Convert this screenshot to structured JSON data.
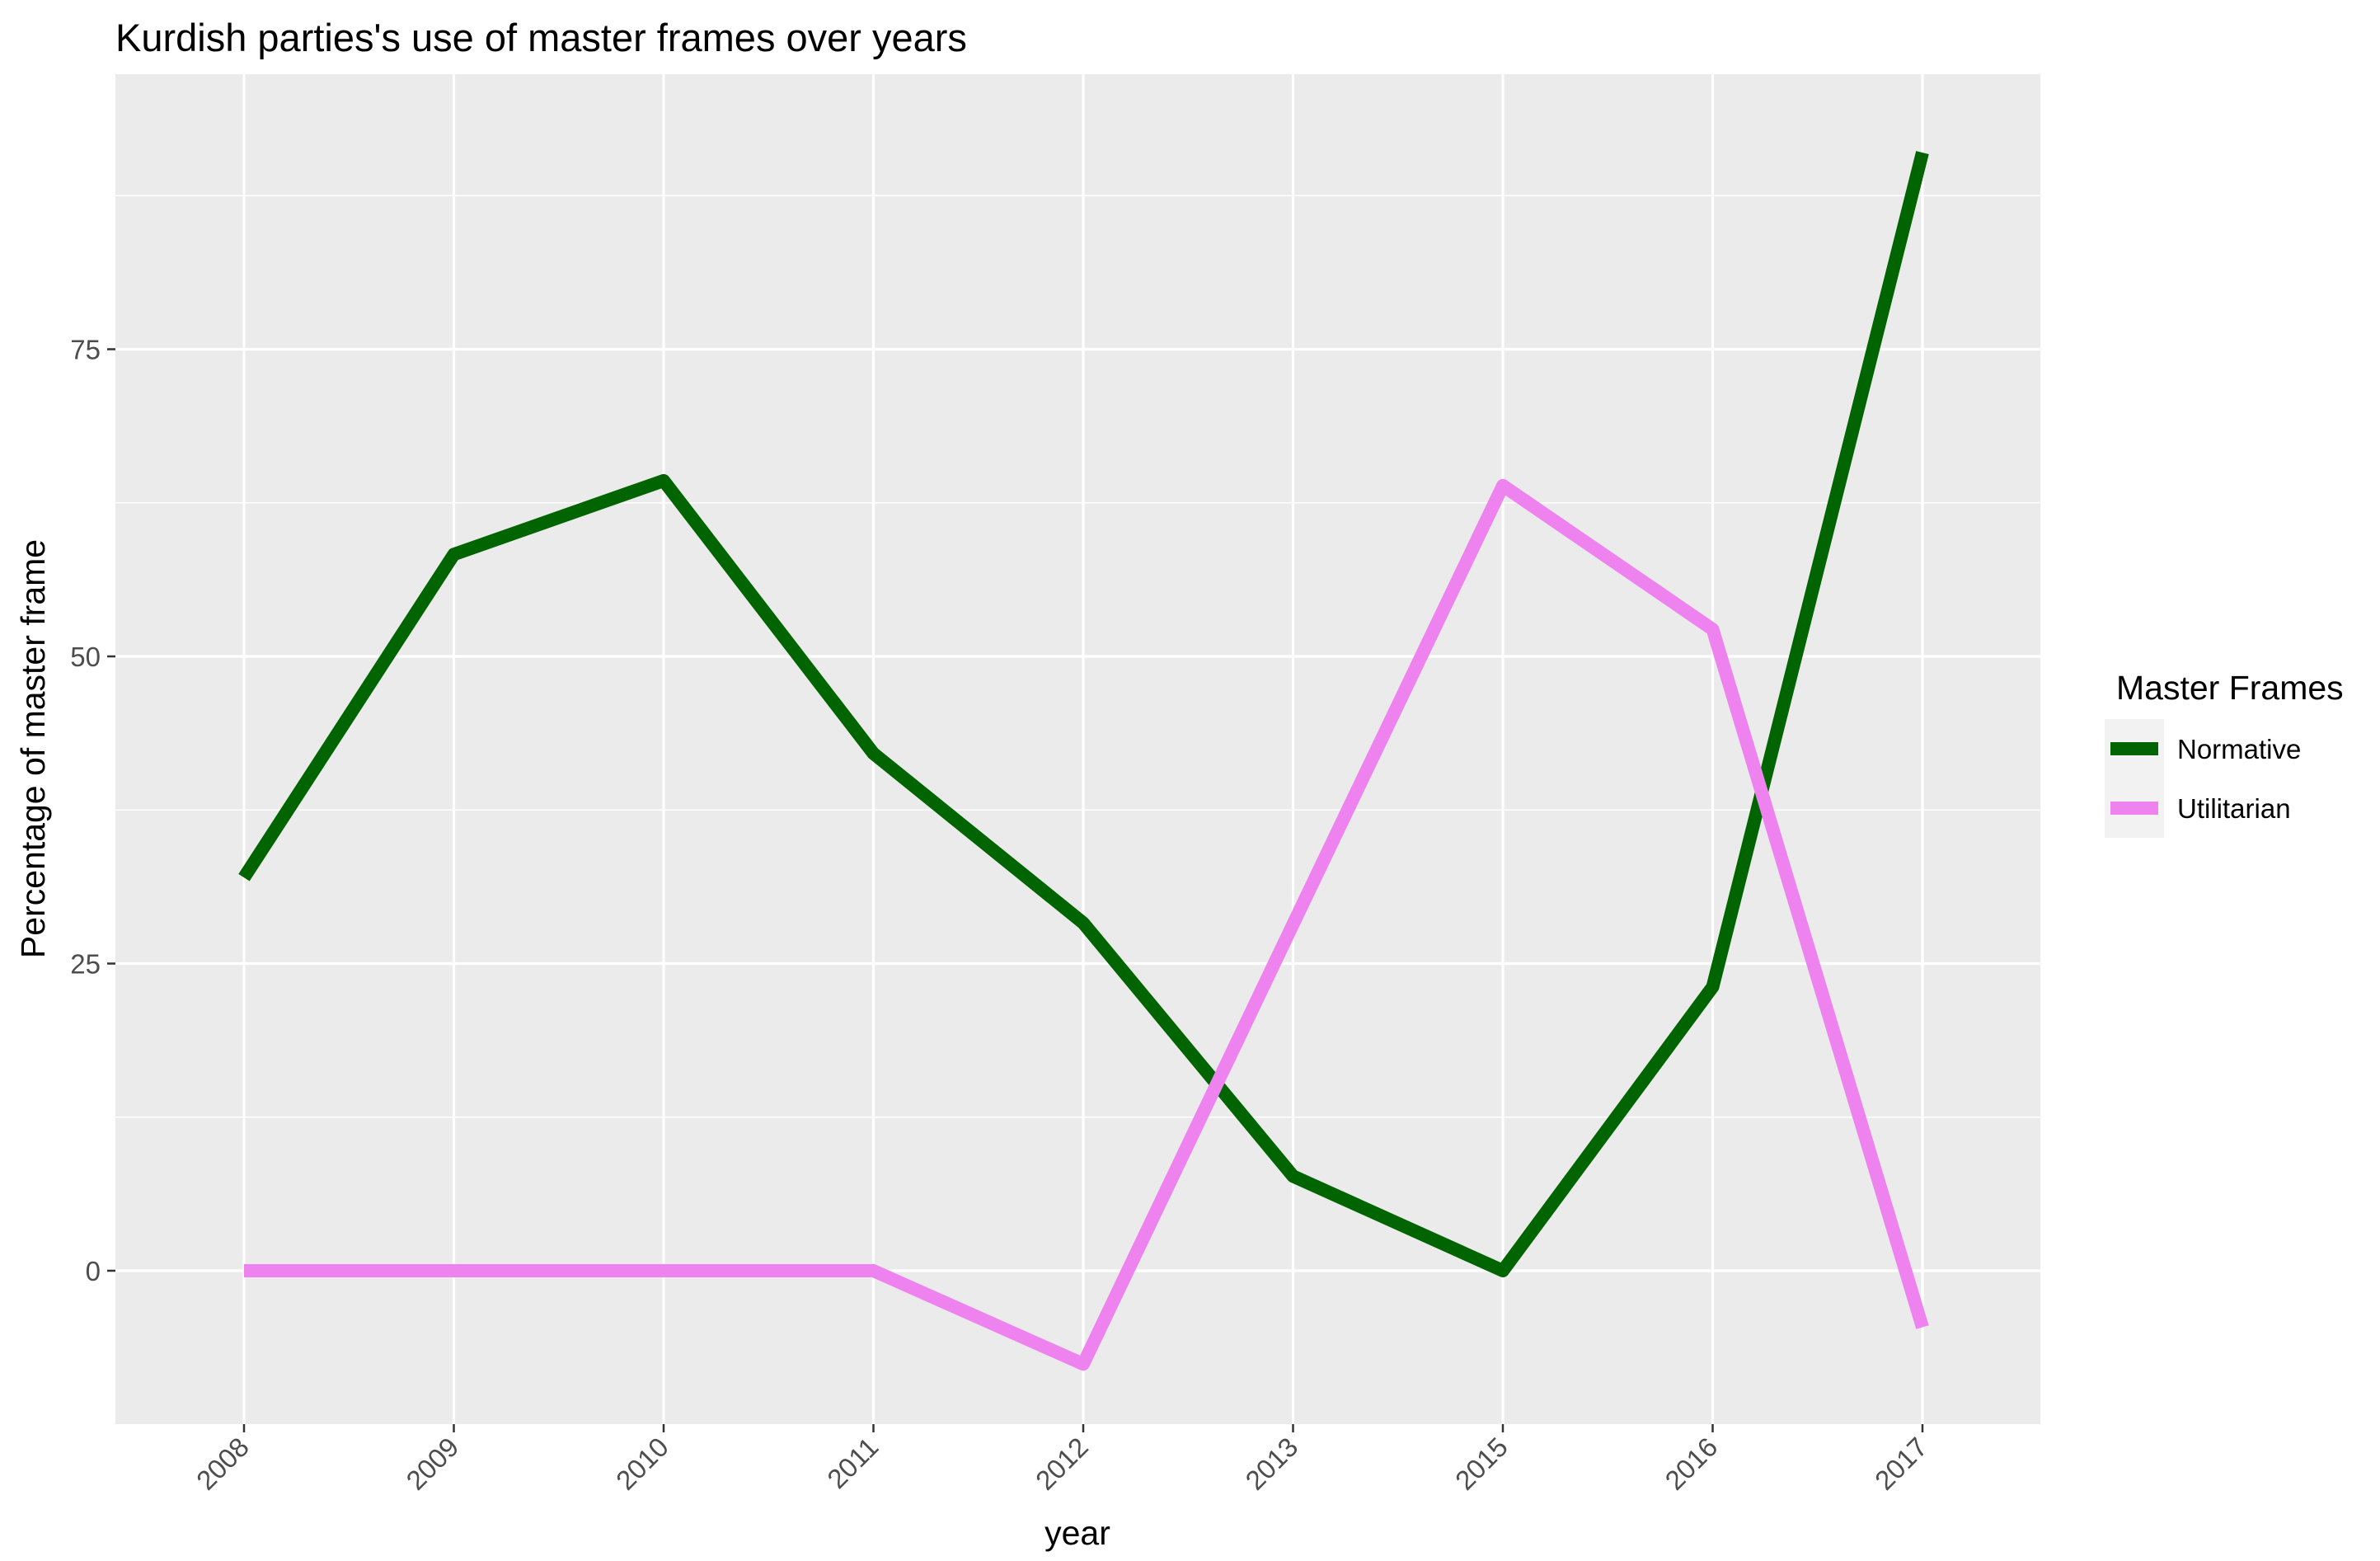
{
  "chart_data": {
    "type": "line",
    "title": "Kurdish parties's use of master frames over years",
    "xlabel": "year",
    "ylabel": "Percentage of master frame",
    "categories": [
      "2008",
      "2009",
      "2010",
      "2011",
      "2012",
      "2013",
      "2015",
      "2016",
      "2017"
    ],
    "ylim": [
      -25,
      100
    ],
    "yticks": [
      0,
      25,
      50,
      75
    ],
    "grid": true,
    "legend": {
      "title": "Master Frames",
      "position": "right"
    },
    "series": [
      {
        "name": "Normative",
        "color": "#006400",
        "values": [
          32,
          58.3,
          64.3,
          42.1,
          28.3,
          7.7,
          0,
          23.1,
          91
        ]
      },
      {
        "name": "Utilitarian",
        "color": "#ee82ee",
        "values": [
          0,
          0,
          0,
          0,
          -7.6,
          28.2,
          63.9,
          52.2,
          -4.6
        ]
      }
    ]
  },
  "colors": {
    "panel_background": "#ebebeb",
    "grid": "#ffffff"
  }
}
